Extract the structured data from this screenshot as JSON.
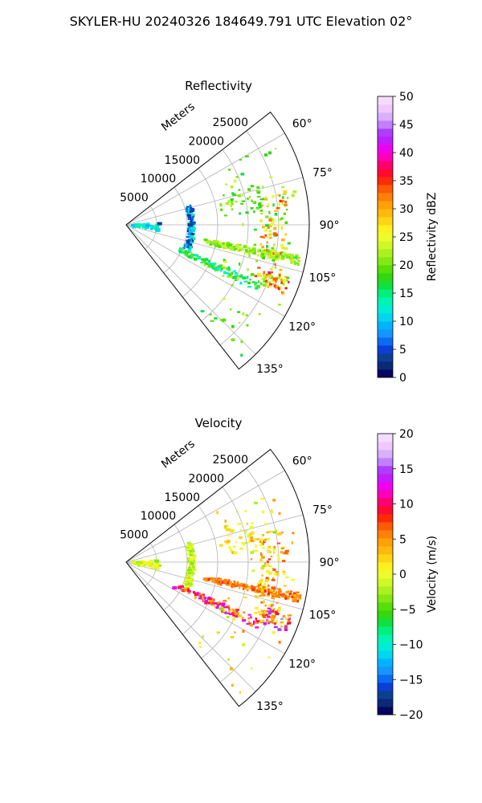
{
  "figure": {
    "suptitle": "SKYLER-HU  20240326  184649.791 UTC Elevation 02°"
  },
  "chart_data": [
    {
      "type": "heatmap",
      "projection": "polar-sector",
      "title": "Reflectivity",
      "radial_label": "Meters",
      "radial_ticks": [
        5000,
        10000,
        15000,
        20000,
        25000
      ],
      "radial_tick_labels": [
        "5000",
        "10000",
        "15000",
        "20000",
        "25000"
      ],
      "rlim": [
        0,
        30000
      ],
      "theta_range_deg": [
        52,
        142
      ],
      "theta_ticks_deg": [
        60,
        75,
        90,
        105,
        120,
        135
      ],
      "theta_tick_labels": [
        "60°",
        "75°",
        "90°",
        "105°",
        "120°",
        "135°"
      ],
      "grid": true,
      "colorbar": {
        "label": "Reflectivity dBZ",
        "range": [
          0,
          50
        ],
        "ticks": [
          0,
          5,
          10,
          15,
          20,
          25,
          30,
          35,
          40,
          45,
          50
        ],
        "tick_labels": [
          "0",
          "5",
          "10",
          "15",
          "20",
          "25",
          "30",
          "35",
          "40",
          "45",
          "50"
        ],
        "colors": [
          "#06065e",
          "#0a2a78",
          "#0b3f94",
          "#0c3fd6",
          "#0a6cf2",
          "#1496ff",
          "#00b3ff",
          "#00d6f0",
          "#00ecd6",
          "#00f5b0",
          "#00f07c",
          "#10e040",
          "#33d810",
          "#58de08",
          "#84e814",
          "#acf020",
          "#cff828",
          "#ecfc2a",
          "#fff01e",
          "#ffd414",
          "#ffb80c",
          "#ffa008",
          "#ff8006",
          "#ff5a06",
          "#ff2a08",
          "#ff0a30",
          "#ff0070",
          "#ff00b8",
          "#f000f0",
          "#c21cff",
          "#b03cff",
          "#c080ff",
          "#d8b0ff",
          "#f0c8ff",
          "#f6dcfc"
        ]
      },
      "echoes": [
        {
          "range": 5500,
          "azimuth": 88,
          "value": 4
        },
        {
          "range": 10500,
          "azimuth": 90,
          "value": 3
        },
        {
          "range": 24500,
          "azimuth": 100,
          "value": 24
        },
        {
          "range": 26000,
          "azimuth": 110,
          "value": 33
        }
      ]
    },
    {
      "type": "heatmap",
      "projection": "polar-sector",
      "title": "Velocity",
      "radial_label": "Meters",
      "radial_ticks": [
        5000,
        10000,
        15000,
        20000,
        25000
      ],
      "radial_tick_labels": [
        "5000",
        "10000",
        "15000",
        "20000",
        "25000"
      ],
      "rlim": [
        0,
        30000
      ],
      "theta_range_deg": [
        52,
        142
      ],
      "theta_ticks_deg": [
        60,
        75,
        90,
        105,
        120,
        135
      ],
      "theta_tick_labels": [
        "60°",
        "75°",
        "90°",
        "105°",
        "120°",
        "135°"
      ],
      "grid": true,
      "colorbar": {
        "label": "Velocity (m/s)",
        "range": [
          -20,
          20
        ],
        "ticks": [
          -20,
          -15,
          -10,
          -5,
          0,
          5,
          10,
          15,
          20
        ],
        "tick_labels": [
          "−20",
          "−15",
          "−10",
          "−5",
          "0",
          "5",
          "10",
          "15",
          "20"
        ],
        "colors": [
          "#06065e",
          "#0a2a78",
          "#0b3f94",
          "#0c3fd6",
          "#0a6cf2",
          "#1496ff",
          "#00b3ff",
          "#00d6f0",
          "#00ecd6",
          "#00f5b0",
          "#00f07c",
          "#10e040",
          "#33d810",
          "#58de08",
          "#84e814",
          "#acf020",
          "#cff828",
          "#ecfc2a",
          "#fff01e",
          "#ffd414",
          "#ffb80c",
          "#ffa008",
          "#ff8006",
          "#ff5a06",
          "#ff2a08",
          "#ff0a30",
          "#ff0070",
          "#ff00b8",
          "#f000f0",
          "#c21cff",
          "#b03cff",
          "#c080ff",
          "#d8b0ff",
          "#f0c8ff",
          "#f6dcfc"
        ]
      },
      "echoes": [
        {
          "range": 5000,
          "azimuth": 88,
          "value": -3
        },
        {
          "range": 24500,
          "azimuth": 100,
          "value": 7
        },
        {
          "range": 20000,
          "azimuth": 115,
          "value": 5
        },
        {
          "range": 9000,
          "azimuth": 118,
          "value": 12
        }
      ]
    }
  ]
}
